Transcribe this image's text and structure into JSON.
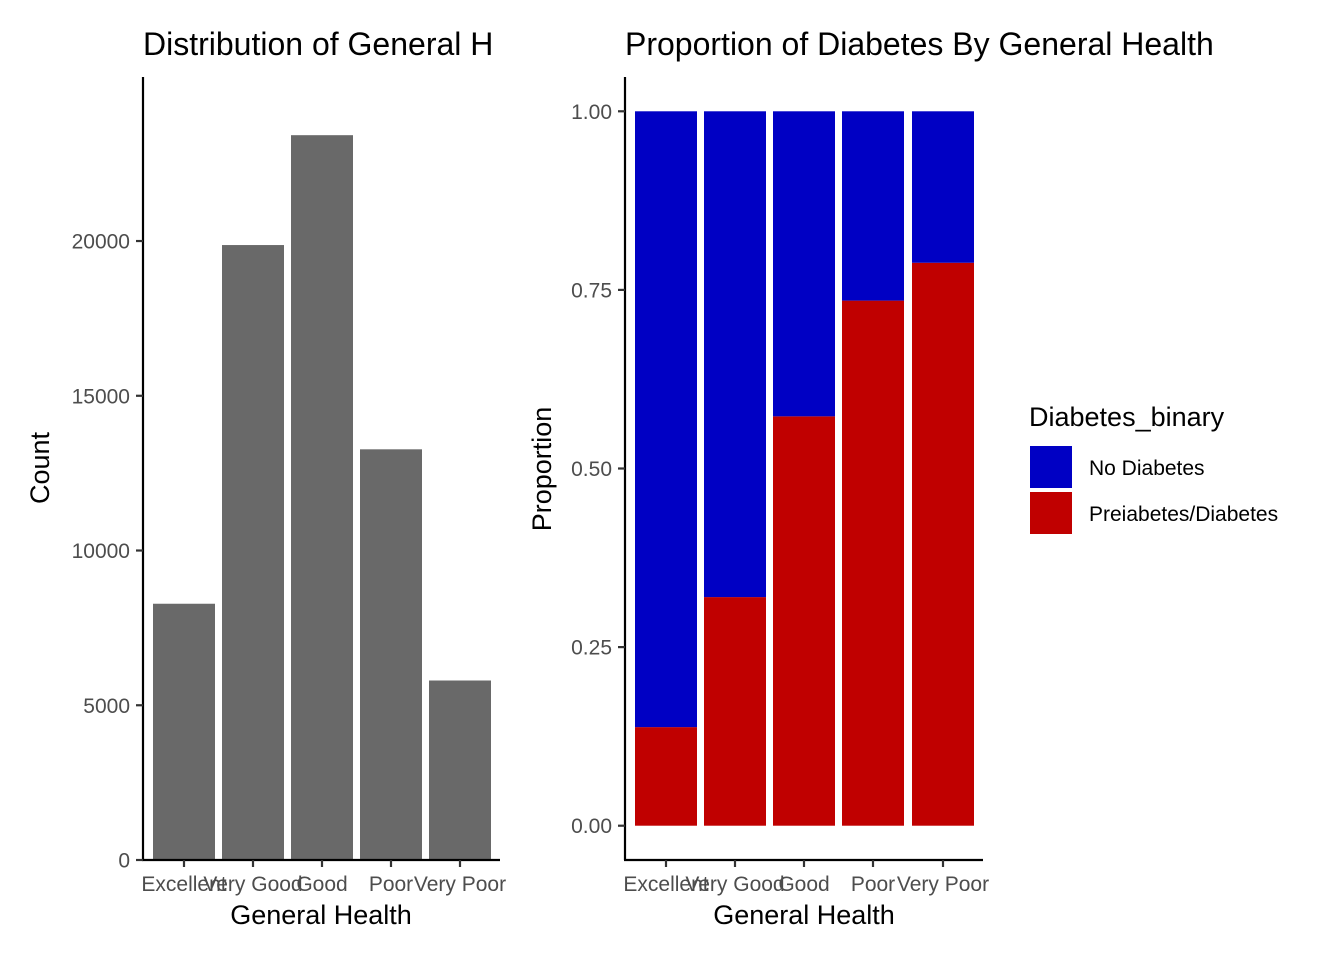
{
  "chart_data": [
    {
      "type": "bar",
      "title": "Distribution of General H",
      "xlabel": "General Health",
      "ylabel": "Count",
      "categories": [
        "Excellent",
        "Very Good",
        "Good",
        "Poor",
        "Very Poor"
      ],
      "values": [
        8280,
        19870,
        23420,
        13270,
        5800
      ],
      "ylim": [
        0,
        25300
      ],
      "yticks": [
        0,
        5000,
        10000,
        15000,
        20000
      ],
      "ytick_labels": [
        "0",
        "5000",
        "10000",
        "15000",
        "20000"
      ],
      "bar_color": "#696969",
      "grid": false
    },
    {
      "type": "bar",
      "stacked": true,
      "title": "Proportion of Diabetes By General Health",
      "xlabel": "General Health",
      "ylabel": "Proportion",
      "categories": [
        "Excellent",
        "Very Good",
        "Good",
        "Poor",
        "Very Poor"
      ],
      "series": [
        {
          "name": "No Diabetes",
          "color": "#0000C4",
          "values": [
            0.862,
            0.68,
            0.427,
            0.265,
            0.212
          ]
        },
        {
          "name": "Preiabetes/Diabetes",
          "color": "#C00000",
          "values": [
            0.138,
            0.32,
            0.573,
            0.735,
            0.788
          ]
        }
      ],
      "ylim": [
        -0.048,
        1.048
      ],
      "yticks": [
        0,
        0.25,
        0.5,
        0.75,
        1
      ],
      "ytick_labels": [
        "0.00",
        "0.25",
        "0.50",
        "0.75",
        "1.00"
      ],
      "legend_title": "Diabetes_binary",
      "legend_position": "right",
      "grid": false
    }
  ]
}
